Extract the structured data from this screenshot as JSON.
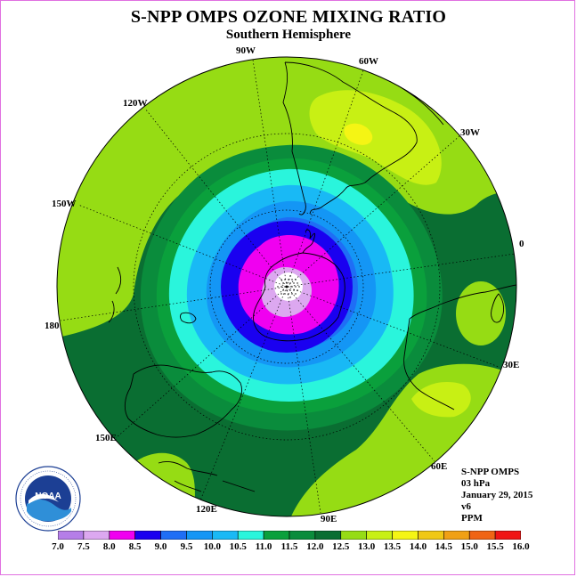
{
  "title": "S-NPP OMPS OZONE MIXING RATIO",
  "subtitle": "Southern Hemisphere",
  "longitude_labels": [
    "90W",
    "60W",
    "120W",
    "30W",
    "150W",
    "0",
    "180",
    "30E",
    "150E",
    "60E",
    "120E",
    "90E"
  ],
  "info": {
    "instrument": "S-NPP OMPS",
    "pressure_level": "03 hPa",
    "date": "January 29, 2015",
    "version": "v6",
    "units": "PPM"
  },
  "logo": {
    "text": "NOAA",
    "ring_text": "NATIONAL OCEANIC AND ATMOSPHERIC ADMINISTRATION · U.S. DEPARTMENT OF COMMERCE"
  },
  "colorbar": {
    "ticks": [
      "7.0",
      "7.5",
      "8.0",
      "8.5",
      "9.0",
      "9.5",
      "10.0",
      "10.5",
      "11.0",
      "11.5",
      "12.0",
      "12.5",
      "13.0",
      "13.5",
      "14.0",
      "14.5",
      "15.0",
      "15.5",
      "16.0"
    ],
    "colors": [
      "#b57ee8",
      "#dca8f0",
      "#f000f0",
      "#1a00f0",
      "#1f6ef5",
      "#1496f5",
      "#19b9f5",
      "#2af5dc",
      "#0aa03c",
      "#0a8c3c",
      "#0a6e32",
      "#96dc14",
      "#c8f014",
      "#f5f514",
      "#f0c814",
      "#f0a014",
      "#f06414",
      "#f01414",
      "#8c5a3c"
    ]
  }
}
